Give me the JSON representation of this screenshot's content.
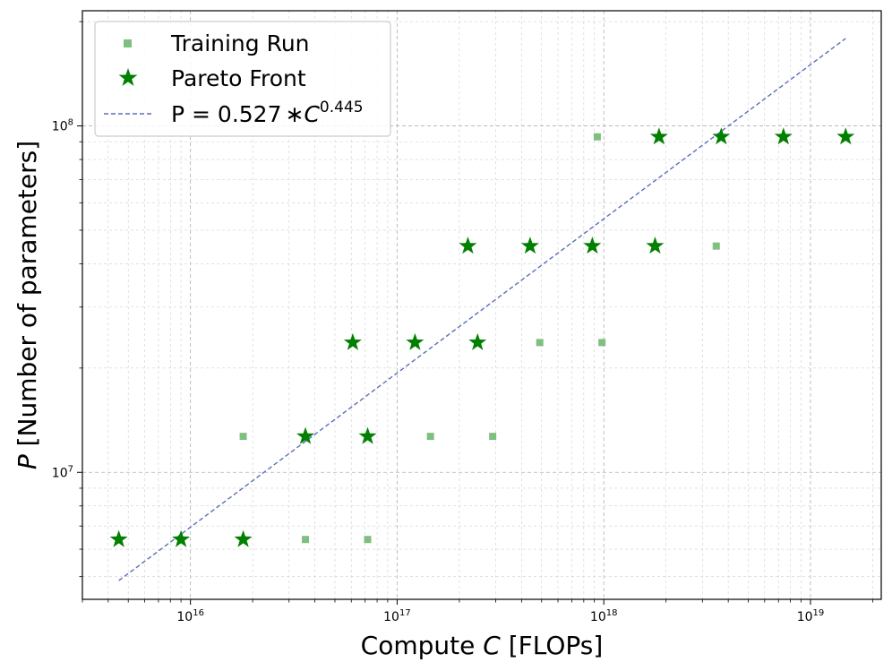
{
  "chart_data": {
    "type": "scatter",
    "xscale": "log",
    "yscale": "log",
    "xlim": [
      3000000000000000.0,
      2.2e+19
    ],
    "ylim": [
      4300000.0,
      215000000.0
    ],
    "grid": true,
    "legend_position": "top-left",
    "xlabel_parts": [
      "Compute ",
      "C",
      " [FLOPs]"
    ],
    "ylabel_parts": [
      "P",
      " [Number of parameters]"
    ],
    "x_tick_labels": [
      {
        "value": 1e+16,
        "base": "10",
        "exp": "16"
      },
      {
        "value": 1e+17,
        "base": "10",
        "exp": "17"
      },
      {
        "value": 1e+18,
        "base": "10",
        "exp": "18"
      },
      {
        "value": 1e+19,
        "base": "10",
        "exp": "19"
      }
    ],
    "y_tick_labels": [
      {
        "value": 10000000.0,
        "base": "10",
        "exp": "7"
      },
      {
        "value": 100000000.0,
        "base": "10",
        "exp": "8"
      }
    ],
    "series": [
      {
        "name": "Training Run",
        "marker": "square",
        "color": "#7fbf7f",
        "points": [
          [
            1.8e+16,
            12700000.0
          ],
          [
            3.6e+16,
            6400000.0
          ],
          [
            7.2e+16,
            6400000.0
          ],
          [
            1.45e+17,
            12700000.0
          ],
          [
            2.9e+17,
            12700000.0
          ],
          [
            4.9e+17,
            23700000.0
          ],
          [
            9.8e+17,
            23700000.0
          ],
          [
            3.5e+18,
            45000000.0
          ],
          [
            9.3e+17,
            93000000.0
          ]
        ]
      },
      {
        "name": "Pareto Front",
        "marker": "star",
        "color": "#008000",
        "points": [
          [
            4500000000000000.0,
            6400000.0
          ],
          [
            9000000000000000.0,
            6400000.0
          ],
          [
            1.8e+16,
            6400000.0
          ],
          [
            3.6e+16,
            12700000.0
          ],
          [
            7.2e+16,
            12700000.0
          ],
          [
            6.1e+16,
            23700000.0
          ],
          [
            1.22e+17,
            23700000.0
          ],
          [
            2.45e+17,
            23700000.0
          ],
          [
            2.2e+17,
            45000000.0
          ],
          [
            4.4e+17,
            45000000.0
          ],
          [
            8.8e+17,
            45000000.0
          ],
          [
            1.77e+18,
            45000000.0
          ],
          [
            1.85e+18,
            93000000.0
          ],
          [
            3.7e+18,
            93000000.0
          ],
          [
            7.4e+18,
            93000000.0
          ],
          [
            1.48e+19,
            93000000.0
          ]
        ]
      }
    ],
    "fit": {
      "label_text": "P = 0.527",
      "label_star": "∗",
      "label_base": "C",
      "label_exp": "0.445",
      "coefficient": 0.527,
      "exponent": 0.445,
      "x_range": [
        4500000000000000.0,
        1.48e+19
      ],
      "color": "#5b6fb8",
      "style": "dashed"
    }
  }
}
